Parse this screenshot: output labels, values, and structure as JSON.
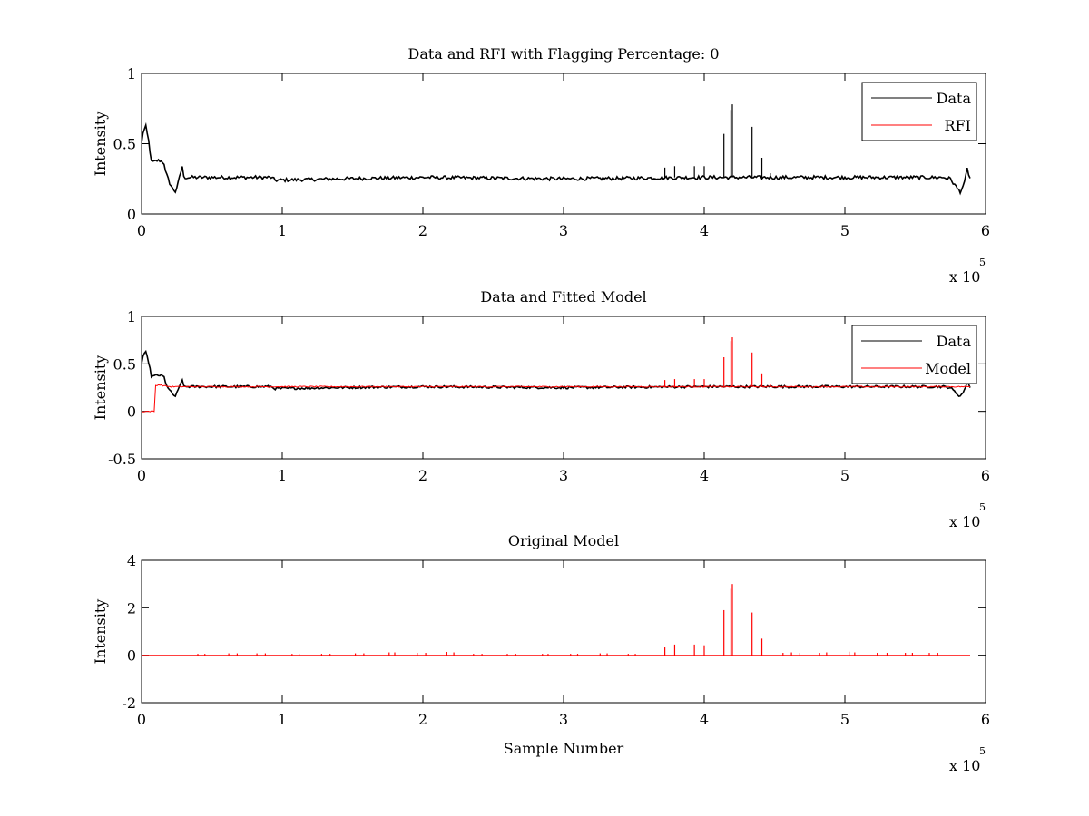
{
  "figure": {
    "background": "#ffffff"
  },
  "colors": {
    "data": "#000000",
    "rfi": "#ff0000"
  },
  "chart_data": [
    {
      "type": "line",
      "title": "Data and RFI with Flagging Percentage: 0",
      "xlabel": "",
      "ylabel": "Intensity",
      "xlim": [
        0,
        600000
      ],
      "ylim": [
        0,
        1
      ],
      "xticks": [
        0,
        100000,
        200000,
        300000,
        400000,
        500000,
        600000
      ],
      "xtick_labels": [
        "0",
        "1",
        "2",
        "3",
        "4",
        "5",
        "6"
      ],
      "yticks": [
        0,
        0.5,
        1
      ],
      "ytick_labels": [
        "0",
        "0.5",
        "1"
      ],
      "exponent_label": "x 10",
      "exponent_power": "5",
      "legend": {
        "position": "top-right",
        "entries": [
          "Data",
          "RFI"
        ]
      },
      "series": [
        {
          "name": "Data",
          "color": "#000000",
          "baseline": 0.26,
          "points": [
            [
              0,
              0.5
            ],
            [
              1000,
              0.58
            ],
            [
              3000,
              0.62
            ],
            [
              5000,
              0.52
            ],
            [
              7000,
              0.37
            ],
            [
              9000,
              0.37
            ],
            [
              11000,
              0.38
            ],
            [
              13000,
              0.38
            ],
            [
              15000,
              0.37
            ],
            [
              16000,
              0.36
            ],
            [
              17000,
              0.3
            ],
            [
              20000,
              0.22
            ],
            [
              22000,
              0.18
            ],
            [
              24000,
              0.16
            ],
            [
              26000,
              0.22
            ],
            [
              28000,
              0.3
            ],
            [
              29000,
              0.34
            ],
            [
              30000,
              0.26
            ],
            [
              92000,
              0.26
            ],
            [
              95000,
              0.24
            ],
            [
              140000,
              0.25
            ],
            [
              200000,
              0.26
            ],
            [
              300000,
              0.25
            ],
            [
              400000,
              0.26
            ],
            [
              570000,
              0.26
            ],
            [
              575000,
              0.25
            ],
            [
              580000,
              0.18
            ],
            [
              582000,
              0.16
            ],
            [
              585000,
              0.22
            ],
            [
              587000,
              0.32
            ],
            [
              589000,
              0.25
            ]
          ],
          "spikes": [
            [
              372000,
              0.33
            ],
            [
              379000,
              0.34
            ],
            [
              393000,
              0.34
            ],
            [
              400000,
              0.34
            ],
            [
              414000,
              0.57
            ],
            [
              419000,
              0.74
            ],
            [
              420000,
              0.78
            ],
            [
              434000,
              0.62
            ],
            [
              441000,
              0.4
            ],
            [
              447000,
              0.29
            ]
          ]
        },
        {
          "name": "RFI",
          "color": "#ff0000",
          "points": []
        }
      ]
    },
    {
      "type": "line",
      "title": "Data and Fitted Model",
      "xlabel": "",
      "ylabel": "Intensity",
      "xlim": [
        0,
        600000
      ],
      "ylim": [
        -0.5,
        1
      ],
      "xticks": [
        0,
        100000,
        200000,
        300000,
        400000,
        500000,
        600000
      ],
      "xtick_labels": [
        "0",
        "1",
        "2",
        "3",
        "4",
        "5",
        "6"
      ],
      "yticks": [
        -0.5,
        0,
        0.5,
        1
      ],
      "ytick_labels": [
        "-0.5",
        "0",
        "0.5",
        "1"
      ],
      "exponent_label": "x 10",
      "exponent_power": "5",
      "legend": {
        "position": "top-right",
        "entries": [
          "Data",
          "Model"
        ]
      },
      "series": [
        {
          "name": "Data",
          "color": "#000000",
          "baseline": 0.26,
          "points": [
            [
              0,
              0.5
            ],
            [
              1000,
              0.58
            ],
            [
              3000,
              0.62
            ],
            [
              5000,
              0.52
            ],
            [
              7000,
              0.37
            ],
            [
              9000,
              0.37
            ],
            [
              11000,
              0.38
            ],
            [
              13000,
              0.38
            ],
            [
              15000,
              0.37
            ],
            [
              16000,
              0.36
            ],
            [
              17000,
              0.3
            ],
            [
              20000,
              0.22
            ],
            [
              22000,
              0.18
            ],
            [
              24000,
              0.16
            ],
            [
              26000,
              0.22
            ],
            [
              28000,
              0.3
            ],
            [
              29000,
              0.34
            ],
            [
              30000,
              0.26
            ],
            [
              92000,
              0.26
            ],
            [
              95000,
              0.24
            ],
            [
              140000,
              0.25
            ],
            [
              200000,
              0.26
            ],
            [
              300000,
              0.25
            ],
            [
              400000,
              0.26
            ],
            [
              570000,
              0.26
            ],
            [
              575000,
              0.25
            ],
            [
              580000,
              0.18
            ],
            [
              582000,
              0.16
            ],
            [
              585000,
              0.22
            ],
            [
              587000,
              0.32
            ],
            [
              589000,
              0.25
            ]
          ],
          "spikes": []
        },
        {
          "name": "Model",
          "color": "#ff0000",
          "baseline": 0.26,
          "points": [
            [
              0,
              0
            ],
            [
              9500,
              0
            ],
            [
              9600,
              0.27
            ],
            [
              12000,
              0.28
            ],
            [
              20000,
              0.26
            ],
            [
              200000,
              0.26
            ],
            [
              400000,
              0.26
            ],
            [
              589000,
              0.26
            ]
          ],
          "spikes": [
            [
              372000,
              0.33
            ],
            [
              379000,
              0.34
            ],
            [
              393000,
              0.34
            ],
            [
              400000,
              0.34
            ],
            [
              414000,
              0.57
            ],
            [
              419000,
              0.74
            ],
            [
              420000,
              0.78
            ],
            [
              434000,
              0.62
            ],
            [
              441000,
              0.4
            ],
            [
              447000,
              0.29
            ]
          ]
        }
      ]
    },
    {
      "type": "line",
      "title": "Original Model",
      "xlabel": "Sample Number",
      "ylabel": "Intensity",
      "xlim": [
        0,
        600000
      ],
      "ylim": [
        -2,
        4
      ],
      "xticks": [
        0,
        100000,
        200000,
        300000,
        400000,
        500000,
        600000
      ],
      "xtick_labels": [
        "0",
        "1",
        "2",
        "3",
        "4",
        "5",
        "6"
      ],
      "yticks": [
        -2,
        0,
        2,
        4
      ],
      "ytick_labels": [
        "-2",
        "0",
        "2",
        "4"
      ],
      "exponent_label": "x 10",
      "exponent_power": "5",
      "legend": null,
      "series": [
        {
          "name": "",
          "color": "#ff0000",
          "baseline": 0,
          "points": [
            [
              0,
              0
            ],
            [
              589000,
              0
            ]
          ],
          "spikes": [
            [
              372000,
              0.33
            ],
            [
              379000,
              0.45
            ],
            [
              393000,
              0.45
            ],
            [
              400000,
              0.42
            ],
            [
              414000,
              1.9
            ],
            [
              419000,
              2.8
            ],
            [
              420000,
              3.0
            ],
            [
              434000,
              1.8
            ],
            [
              441000,
              0.7
            ],
            [
              456000,
              0.1
            ],
            [
              462000,
              0.12
            ],
            [
              468000,
              0.1
            ],
            [
              482000,
              0.1
            ],
            [
              487000,
              0.12
            ],
            [
              503000,
              0.15
            ],
            [
              507000,
              0.12
            ],
            [
              523000,
              0.1
            ],
            [
              530000,
              0.1
            ],
            [
              543000,
              0.1
            ],
            [
              548000,
              0.1
            ],
            [
              560000,
              0.1
            ],
            [
              566000,
              0.1
            ],
            [
              40000,
              0.06
            ],
            [
              45000,
              0.06
            ],
            [
              62000,
              0.08
            ],
            [
              68000,
              0.08
            ],
            [
              82000,
              0.08
            ],
            [
              88000,
              0.08
            ],
            [
              107000,
              0.06
            ],
            [
              112000,
              0.06
            ],
            [
              128000,
              0.06
            ],
            [
              134000,
              0.06
            ],
            [
              152000,
              0.08
            ],
            [
              158000,
              0.08
            ],
            [
              176000,
              0.12
            ],
            [
              180000,
              0.12
            ],
            [
              196000,
              0.1
            ],
            [
              202000,
              0.1
            ],
            [
              217000,
              0.14
            ],
            [
              222000,
              0.12
            ],
            [
              236000,
              0.06
            ],
            [
              242000,
              0.06
            ],
            [
              260000,
              0.06
            ],
            [
              266000,
              0.06
            ],
            [
              285000,
              0.06
            ],
            [
              289000,
              0.06
            ],
            [
              305000,
              0.06
            ],
            [
              310000,
              0.06
            ],
            [
              326000,
              0.08
            ],
            [
              331000,
              0.08
            ],
            [
              346000,
              0.06
            ],
            [
              351000,
              0.06
            ]
          ]
        }
      ]
    }
  ]
}
